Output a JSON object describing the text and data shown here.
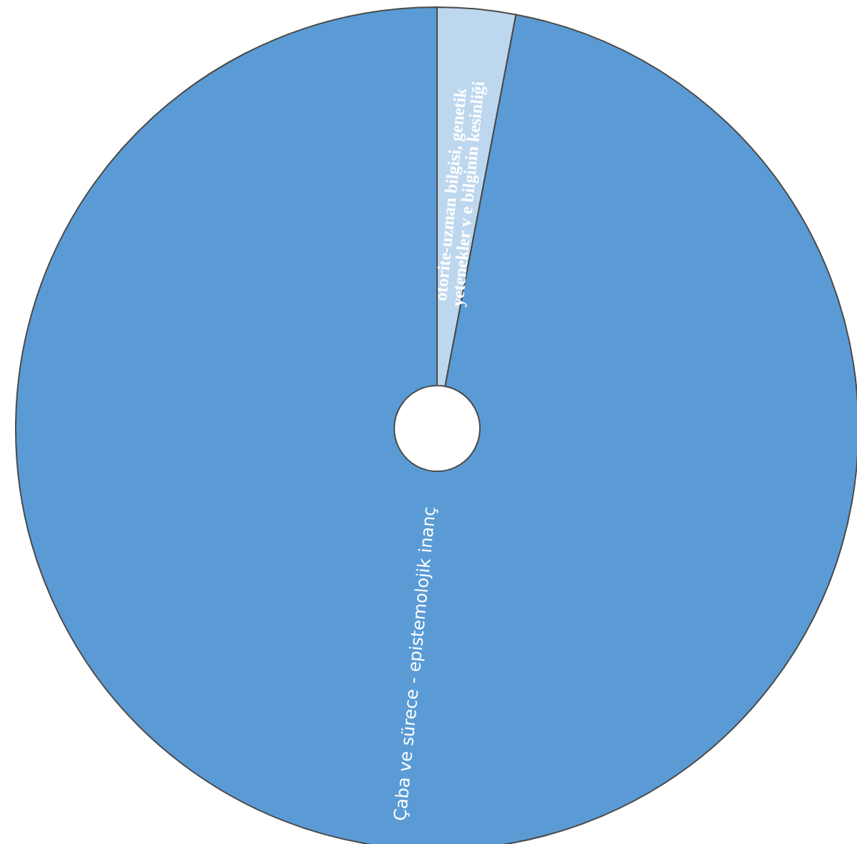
{
  "chart_data": {
    "type": "pie",
    "categories": [
      "otorite-uzman bilgisi, genetik yetenekler v e bilginin kesinliği",
      "Çaba ve sürece - epistemolojik inanç"
    ],
    "values": [
      3,
      97
    ],
    "colors": [
      "#bdd7ee",
      "#5b9bd5"
    ],
    "legend": false
  }
}
